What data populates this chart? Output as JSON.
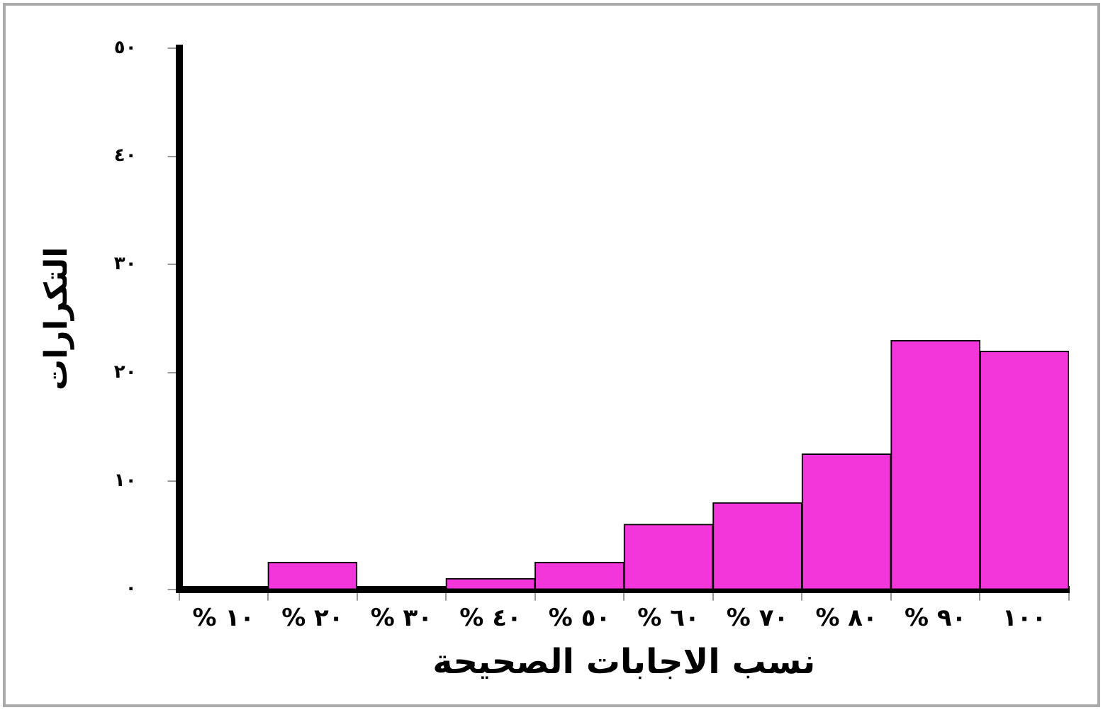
{
  "chart_data": {
    "type": "bar",
    "xlabel": "نسب الاجابات الصحيحة",
    "ylabel": "التكرارات",
    "categories": [
      "% ١٠",
      "% ٢٠",
      "% ٣٠",
      "% ٤٠",
      "% ٥٠",
      "% ٦٠",
      "% ٧٠",
      "% ٨٠",
      "% ٩٠",
      "١٠٠"
    ],
    "values": [
      0,
      2.5,
      0,
      1,
      2.5,
      6,
      8,
      12.5,
      23,
      22
    ],
    "color": "#f236d9",
    "ylim": [
      0,
      50
    ],
    "yticks": [
      {
        "value": 0,
        "label": "٠"
      },
      {
        "value": 10,
        "label": "١٠"
      },
      {
        "value": 20,
        "label": "٢٠"
      },
      {
        "value": 30,
        "label": "٣٠"
      },
      {
        "value": 40,
        "label": "٤٠"
      },
      {
        "value": 50,
        "label": "٥٠"
      }
    ],
    "grid": false,
    "legend": false
  }
}
